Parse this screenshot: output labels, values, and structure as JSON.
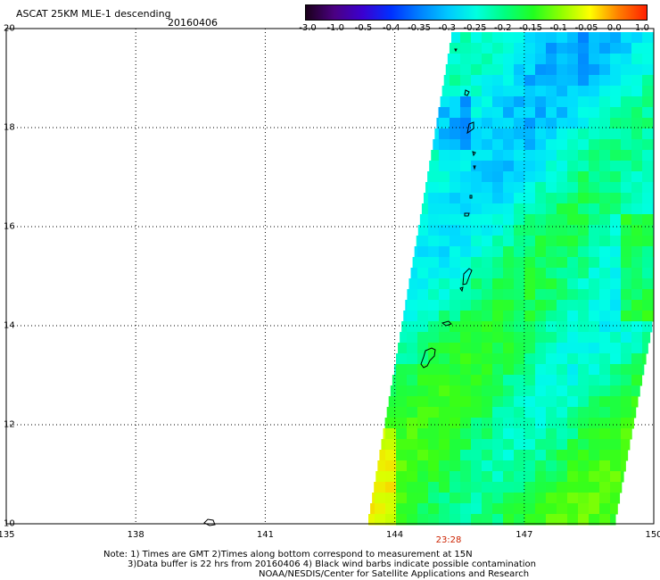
{
  "header": {
    "title": "ASCAT 25KM MLE-1 descending",
    "date": "20160406"
  },
  "colorbar": {
    "labels": [
      "-3.0",
      "-1.0",
      "-0.5",
      "-0.4",
      "-0.35",
      "-0.3",
      "-0.25",
      "-0.2",
      "-0.15",
      "-0.1",
      "-0.05",
      "0.0",
      "1.0"
    ],
    "colors": [
      "#1a001a",
      "#4b0082",
      "#3b00d0",
      "#0030ff",
      "#0080ff",
      "#00c8ff",
      "#00ffe0",
      "#00ff80",
      "#20ff20",
      "#90ff00",
      "#ffff00",
      "#ff8000",
      "#ff2000"
    ]
  },
  "axes": {
    "lat_labels": [
      "20",
      "18",
      "16",
      "14",
      "12",
      "10"
    ],
    "lon_labels": [
      "135",
      "138",
      "141",
      "144",
      "147",
      "150"
    ],
    "time_label": "23:28",
    "time_color": "#cc2200"
  },
  "notes": {
    "line1": "Note: 1) Times are GMT 2)Times along bottom correspond to measurement at 15N",
    "line2": "3)Data buffer is 22 hrs from 20160406 4) Black wind barbs indicate possible contamination",
    "line3": "NOAA/NESDIS/Center for Satellite Applications and Research"
  },
  "map": {
    "land_outline": "#000000",
    "grid_color": "#000000"
  }
}
